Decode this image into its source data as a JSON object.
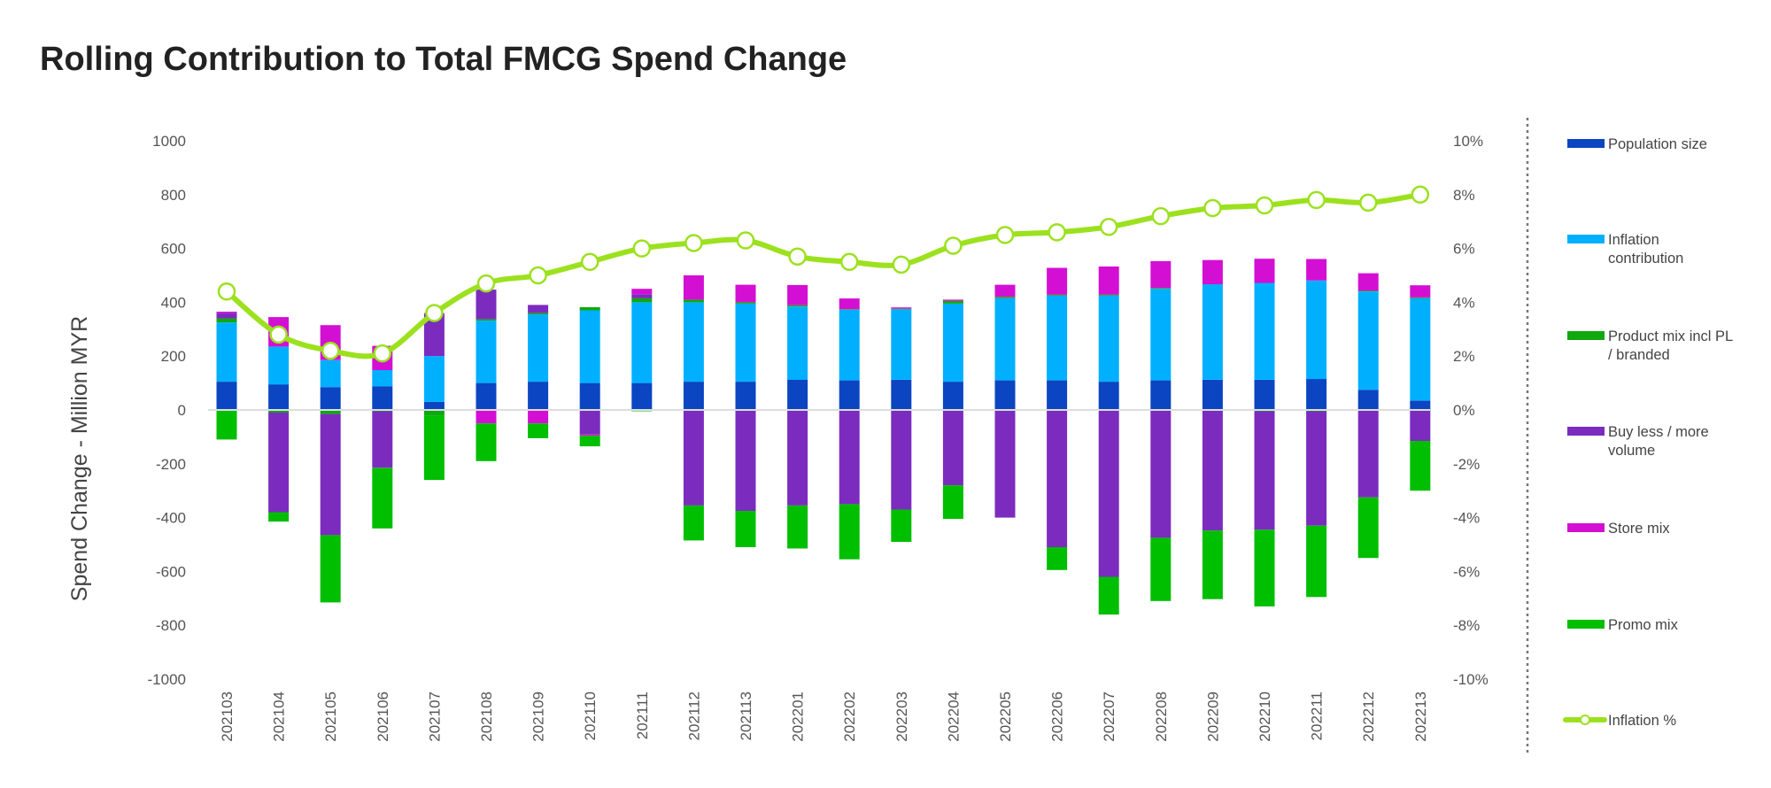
{
  "chart_data": {
    "type": "bar",
    "title": "Rolling Contribution to Total FMCG Spend Change",
    "ylabel": "Spend Change - Million MYR",
    "y2label": "",
    "ylim": [
      -1000,
      1000
    ],
    "y2lim": [
      -10,
      10
    ],
    "yticks": [
      1000,
      800,
      600,
      400,
      200,
      0,
      -200,
      -400,
      -600,
      -800,
      -1000
    ],
    "y2ticks": [
      "10%",
      "8%",
      "6%",
      "4%",
      "2%",
      "0%",
      "-2%",
      "-4%",
      "-6%",
      "-8%",
      "-10%"
    ],
    "categories": [
      "202103",
      "202104",
      "202105",
      "202106",
      "202107",
      "202108",
      "202109",
      "202110",
      "202111",
      "202112",
      "202113",
      "202201",
      "202202",
      "202203",
      "202204",
      "202205",
      "202206",
      "202207",
      "202208",
      "202209",
      "202210",
      "202211",
      "202212",
      "202213"
    ],
    "stacked": true,
    "series": [
      {
        "name": "Population size",
        "color": "#0B45C2",
        "values": [
          105,
          95,
          85,
          88,
          30,
          100,
          105,
          100,
          100,
          105,
          105,
          112,
          110,
          112,
          105,
          110,
          110,
          105,
          110,
          112,
          112,
          115,
          75,
          35
        ]
      },
      {
        "name": "Inflation contribution",
        "color": "#00B0FF",
        "values": [
          220,
          140,
          100,
          60,
          170,
          232,
          250,
          270,
          300,
          295,
          290,
          272,
          262,
          262,
          290,
          305,
          315,
          320,
          340,
          355,
          360,
          366,
          365,
          380
        ]
      },
      {
        "name": "Product mix incl PL / branded",
        "color": "#0FA80F",
        "values": [
          15,
          -10,
          -15,
          -5,
          -20,
          5,
          5,
          12,
          15,
          10,
          5,
          5,
          2,
          2,
          10,
          5,
          3,
          3,
          3,
          -3,
          -5,
          -5,
          3,
          3
        ]
      },
      {
        "name": "Buy less / more volume",
        "color": "#7B2CBF",
        "values": [
          20,
          -370,
          -450,
          -210,
          155,
          110,
          30,
          -90,
          15,
          -355,
          -375,
          -355,
          -350,
          -370,
          -280,
          -400,
          -510,
          -620,
          -475,
          -445,
          -440,
          -425,
          -325,
          -115
        ]
      },
      {
        "name": "Store mix",
        "color": "#D40FD4",
        "values": [
          5,
          110,
          130,
          90,
          5,
          -50,
          -50,
          -5,
          20,
          90,
          65,
          75,
          40,
          5,
          5,
          45,
          100,
          105,
          100,
          90,
          90,
          80,
          65,
          45
        ]
      },
      {
        "name": "Promo mix",
        "color": "#00BE00",
        "values": [
          -110,
          -35,
          -250,
          -225,
          -240,
          -140,
          -55,
          -40,
          -5,
          -130,
          -135,
          -160,
          -205,
          -120,
          -125,
          0,
          -85,
          -140,
          -235,
          -255,
          -285,
          -265,
          -225,
          -185
        ]
      },
      {
        "name": "Inflation %",
        "color": "#9CE11E",
        "type": "line",
        "axis": "y2",
        "values": [
          4.4,
          2.8,
          2.2,
          2.1,
          3.6,
          4.7,
          5.0,
          5.5,
          6.0,
          6.2,
          6.3,
          5.7,
          5.5,
          5.4,
          6.1,
          6.5,
          6.6,
          6.8,
          7.2,
          7.5,
          7.6,
          7.8,
          7.7,
          8.0
        ]
      }
    ],
    "grid": false,
    "legend": "right"
  }
}
